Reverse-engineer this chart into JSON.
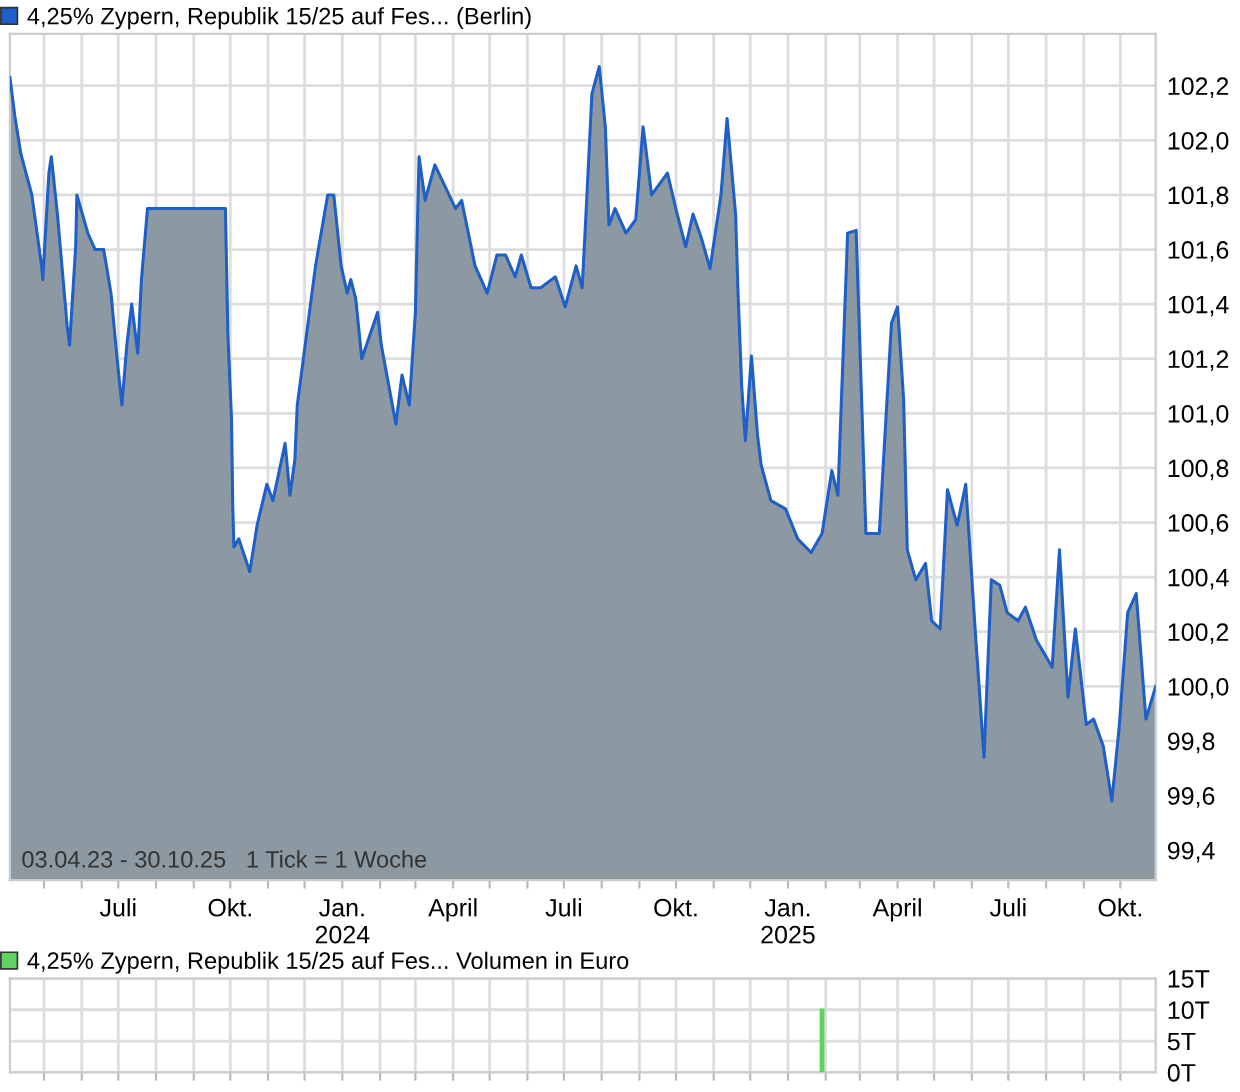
{
  "chart_data": [
    {
      "type": "area",
      "legend": "top left",
      "grid": true,
      "tick_labels": "xy",
      "xlim": [
        "2023-04-03",
        "2025-10-30"
      ],
      "xticks": [
        {
          "value": "2023-05-01",
          "label": null
        },
        {
          "value": "2023-06-01",
          "label": null
        },
        {
          "value": "2023-07-01",
          "label": "Juli"
        },
        {
          "value": "2023-08-01",
          "label": null
        },
        {
          "value": "2023-09-01",
          "label": null
        },
        {
          "value": "2023-10-01",
          "label": "Okt."
        },
        {
          "value": "2023-11-01",
          "label": null
        },
        {
          "value": "2023-12-01",
          "label": null
        },
        {
          "value": "2024-01-01",
          "label": "Jan.\n2024"
        },
        {
          "value": "2024-02-01",
          "label": null
        },
        {
          "value": "2024-03-01",
          "label": null
        },
        {
          "value": "2024-04-01",
          "label": "April"
        },
        {
          "value": "2024-05-01",
          "label": null
        },
        {
          "value": "2024-06-01",
          "label": null
        },
        {
          "value": "2024-07-01",
          "label": "Juli"
        },
        {
          "value": "2024-08-01",
          "label": null
        },
        {
          "value": "2024-09-01",
          "label": null
        },
        {
          "value": "2024-10-01",
          "label": "Okt."
        },
        {
          "value": "2024-11-01",
          "label": null
        },
        {
          "value": "2024-12-01",
          "label": null
        },
        {
          "value": "2025-01-01",
          "label": "Jan.\n2025"
        },
        {
          "value": "2025-02-01",
          "label": null
        },
        {
          "value": "2025-03-01",
          "label": null
        },
        {
          "value": "2025-04-01",
          "label": "April"
        },
        {
          "value": "2025-05-01",
          "label": null
        },
        {
          "value": "2025-06-01",
          "label": null
        },
        {
          "value": "2025-07-01",
          "label": "Juli"
        },
        {
          "value": "2025-08-01",
          "label": null
        },
        {
          "value": "2025-09-01",
          "label": null
        },
        {
          "value": "2025-10-01",
          "label": "Okt."
        }
      ],
      "ylim": [
        99.29,
        102.39
      ],
      "yticks": [
        {
          "value": 99.4,
          "label": "99,4"
        },
        {
          "value": 99.6,
          "label": "99,6"
        },
        {
          "value": 99.8,
          "label": "99,8"
        },
        {
          "value": 100.0,
          "label": "100,0"
        },
        {
          "value": 100.2,
          "label": "100,2"
        },
        {
          "value": 100.4,
          "label": "100,4"
        },
        {
          "value": 100.6,
          "label": "100,6"
        },
        {
          "value": 100.8,
          "label": "100,8"
        },
        {
          "value": 101.0,
          "label": "101,0"
        },
        {
          "value": 101.2,
          "label": "101,2"
        },
        {
          "value": 101.4,
          "label": "101,4"
        },
        {
          "value": 101.6,
          "label": "101,6"
        },
        {
          "value": 101.8,
          "label": "101,8"
        },
        {
          "value": 102.0,
          "label": "102,0"
        },
        {
          "value": 102.2,
          "label": "102,2"
        }
      ],
      "annotations": [
        "03.04.23 - 30.10.25   1 Tick = 1 Woche"
      ],
      "series": [
        {
          "name": "4,25% Zypern, Republik 15/25 auf Fes... (Berlin)",
          "color": "#1f5fc8",
          "x": [
            "2023-04-03",
            "2023-04-07",
            "2023-04-12",
            "2023-04-21",
            "2023-04-29",
            "2023-04-30",
            "2023-05-05",
            "2023-05-07",
            "2023-05-12",
            "2023-05-20",
            "2023-05-22",
            "2023-05-27",
            "2023-05-28",
            "2023-06-06",
            "2023-06-12",
            "2023-06-19",
            "2023-06-25",
            "2023-06-30",
            "2023-07-04",
            "2023-07-08",
            "2023-07-12",
            "2023-07-17",
            "2023-07-20",
            "2023-07-25",
            "2023-09-27",
            "2023-09-29",
            "2023-10-02",
            "2023-10-03",
            "2023-10-04",
            "2023-10-08",
            "2023-10-17",
            "2023-10-23",
            "2023-10-31",
            "2023-11-05",
            "2023-11-15",
            "2023-11-19",
            "2023-11-23",
            "2023-11-25",
            "2023-12-10",
            "2023-12-20",
            "2023-12-25",
            "2023-12-31",
            "2024-01-05",
            "2024-01-08",
            "2024-01-12",
            "2024-01-17",
            "2024-01-30",
            "2024-02-02",
            "2024-02-14",
            "2024-02-19",
            "2024-02-25",
            "2024-03-01",
            "2024-03-04",
            "2024-03-09",
            "2024-03-17",
            "2024-04-03",
            "2024-04-08",
            "2024-04-19",
            "2024-04-29",
            "2024-05-07",
            "2024-05-14",
            "2024-05-22",
            "2024-05-27",
            "2024-06-04",
            "2024-06-12",
            "2024-06-24",
            "2024-07-02",
            "2024-07-11",
            "2024-07-16",
            "2024-07-19",
            "2024-07-24",
            "2024-07-30",
            "2024-08-04",
            "2024-08-07",
            "2024-08-12",
            "2024-08-21",
            "2024-08-29",
            "2024-09-01",
            "2024-09-04",
            "2024-09-11",
            "2024-09-24",
            "2024-10-02",
            "2024-10-09",
            "2024-10-15",
            "2024-10-22",
            "2024-10-29",
            "2024-11-07",
            "2024-11-12",
            "2024-11-19",
            "2024-11-21",
            "2024-11-24",
            "2024-11-27",
            "2024-12-02",
            "2024-12-07",
            "2024-12-10",
            "2024-12-18",
            "2024-12-30",
            "2025-01-09",
            "2025-01-20",
            "2025-01-29",
            "2025-02-06",
            "2025-02-11",
            "2025-02-19",
            "2025-02-26",
            "2025-03-03",
            "2025-03-06",
            "2025-03-17",
            "2025-03-27",
            "2025-04-01",
            "2025-04-06",
            "2025-04-09",
            "2025-04-16",
            "2025-04-24",
            "2025-04-29",
            "2025-05-06",
            "2025-05-12",
            "2025-05-20",
            "2025-05-27",
            "2025-06-04",
            "2025-06-11",
            "2025-06-17",
            "2025-06-24",
            "2025-06-30",
            "2025-07-09",
            "2025-07-15",
            "2025-07-24",
            "2025-08-06",
            "2025-08-12",
            "2025-08-19",
            "2025-08-25",
            "2025-09-03",
            "2025-09-09",
            "2025-09-17",
            "2025-09-24",
            "2025-09-30",
            "2025-10-07",
            "2025-10-14",
            "2025-10-22",
            "2025-10-30"
          ],
          "values": [
            102.23,
            102.09,
            101.95,
            101.8,
            101.54,
            101.49,
            101.88,
            101.94,
            101.73,
            101.32,
            101.25,
            101.61,
            101.8,
            101.66,
            101.6,
            101.6,
            101.44,
            101.2,
            101.03,
            101.25,
            101.4,
            101.22,
            101.49,
            101.75,
            101.75,
            101.29,
            100.98,
            100.66,
            100.51,
            100.54,
            100.42,
            100.59,
            100.74,
            100.68,
            100.89,
            100.7,
            100.83,
            101.03,
            101.54,
            101.8,
            101.8,
            101.54,
            101.44,
            101.49,
            101.42,
            101.2,
            101.37,
            101.25,
            100.96,
            101.14,
            101.03,
            101.37,
            101.94,
            101.78,
            101.91,
            101.75,
            101.78,
            101.54,
            101.44,
            101.58,
            101.58,
            101.5,
            101.58,
            101.46,
            101.46,
            101.5,
            101.39,
            101.54,
            101.46,
            101.72,
            102.17,
            102.27,
            102.05,
            101.69,
            101.75,
            101.66,
            101.71,
            101.88,
            102.05,
            101.8,
            101.88,
            101.73,
            101.61,
            101.73,
            101.64,
            101.53,
            101.8,
            102.08,
            101.73,
            101.44,
            101.1,
            100.9,
            101.21,
            100.92,
            100.81,
            100.68,
            100.65,
            100.54,
            100.49,
            100.56,
            100.79,
            100.7,
            101.66,
            101.67,
            100.98,
            100.56,
            100.56,
            101.33,
            101.39,
            101.05,
            100.5,
            100.39,
            100.45,
            100.24,
            100.21,
            100.72,
            100.59,
            100.74,
            100.19,
            99.74,
            100.39,
            100.37,
            100.27,
            100.24,
            100.29,
            100.17,
            100.07,
            100.5,
            99.96,
            100.21,
            99.86,
            99.88,
            99.78,
            99.58,
            99.85,
            100.27,
            100.34,
            99.88,
            100.0
          ]
        }
      ]
    },
    {
      "type": "bar",
      "legend": "top left",
      "grid": true,
      "tick_labels": "y",
      "xlim": [
        "2023-04-03",
        "2025-10-30"
      ],
      "xticks": [
        {
          "value": "2023-05-01",
          "label": null
        },
        {
          "value": "2023-06-01",
          "label": null
        },
        {
          "value": "2023-07-01",
          "label": null
        },
        {
          "value": "2023-08-01",
          "label": null
        },
        {
          "value": "2023-09-01",
          "label": null
        },
        {
          "value": "2023-10-01",
          "label": null
        },
        {
          "value": "2023-11-01",
          "label": null
        },
        {
          "value": "2023-12-01",
          "label": null
        },
        {
          "value": "2024-01-01",
          "label": null
        },
        {
          "value": "2024-02-01",
          "label": null
        },
        {
          "value": "2024-03-01",
          "label": null
        },
        {
          "value": "2024-04-01",
          "label": null
        },
        {
          "value": "2024-05-01",
          "label": null
        },
        {
          "value": "2024-06-01",
          "label": null
        },
        {
          "value": "2024-07-01",
          "label": null
        },
        {
          "value": "2024-08-01",
          "label": null
        },
        {
          "value": "2024-09-01",
          "label": null
        },
        {
          "value": "2024-10-01",
          "label": null
        },
        {
          "value": "2024-11-01",
          "label": null
        },
        {
          "value": "2024-12-01",
          "label": null
        },
        {
          "value": "2025-01-01",
          "label": null
        },
        {
          "value": "2025-02-01",
          "label": null
        },
        {
          "value": "2025-03-01",
          "label": null
        },
        {
          "value": "2025-04-01",
          "label": null
        },
        {
          "value": "2025-05-01",
          "label": null
        },
        {
          "value": "2025-06-01",
          "label": null
        },
        {
          "value": "2025-07-01",
          "label": null
        },
        {
          "value": "2025-08-01",
          "label": null
        },
        {
          "value": "2025-09-01",
          "label": null
        },
        {
          "value": "2025-10-01",
          "label": null
        }
      ],
      "ylim": [
        0,
        15
      ],
      "yticks": [
        {
          "value": 0,
          "label": "0T"
        },
        {
          "value": 5,
          "label": "5T"
        },
        {
          "value": 10,
          "label": "10T"
        },
        {
          "value": 15,
          "label": "15T"
        }
      ],
      "series": [
        {
          "name": "4,25% Zypern, Republik 15/25 auf Fes... Volumen in Euro",
          "color": "#5fd35f",
          "x": [
            "2025-01-29"
          ],
          "values": [
            10.2
          ]
        }
      ]
    }
  ]
}
